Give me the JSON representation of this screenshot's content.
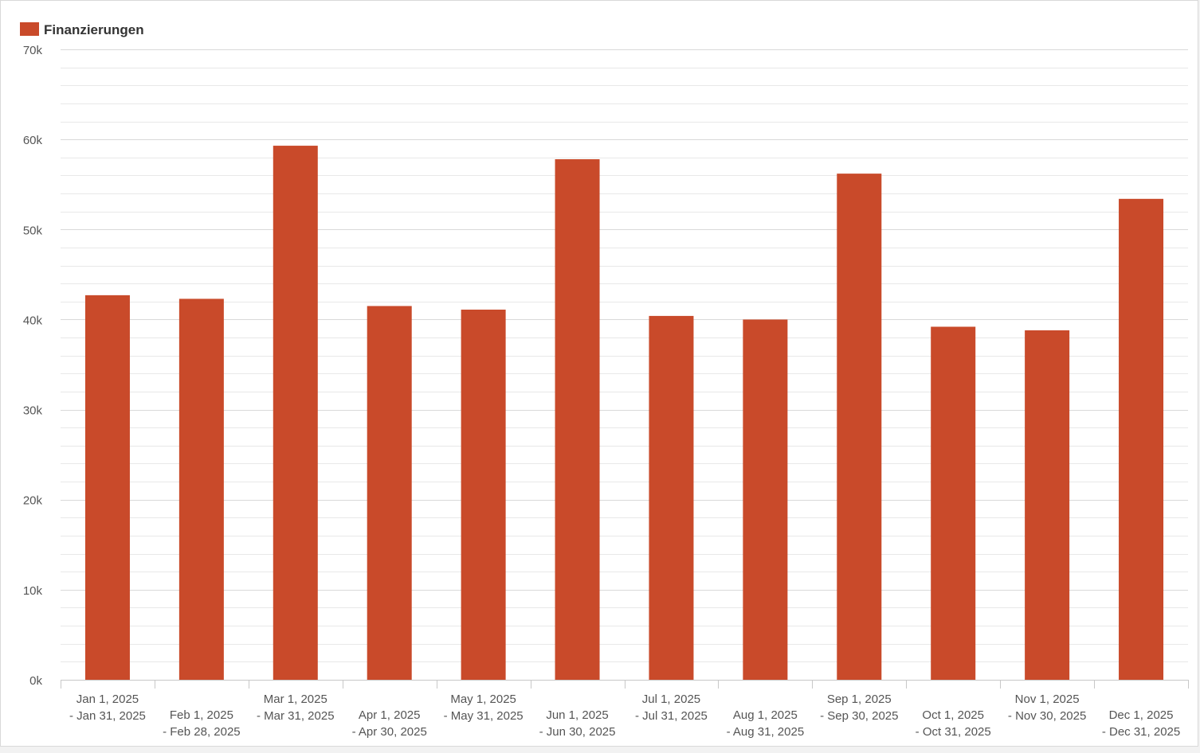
{
  "chart_data": {
    "type": "bar",
    "series": [
      {
        "name": "Finanzierungen",
        "color": "#c94a2a",
        "values": [
          42700,
          42300,
          59300,
          41500,
          41100,
          57800,
          40400,
          40000,
          56200,
          39200,
          38800,
          53400
        ]
      }
    ],
    "categories": [
      [
        "Jan 1, 2025",
        "- Jan 31, 2025"
      ],
      [
        "Feb 1, 2025",
        "- Feb 28, 2025"
      ],
      [
        "Mar 1, 2025",
        "- Mar 31, 2025"
      ],
      [
        "Apr 1, 2025",
        "- Apr 30, 2025"
      ],
      [
        "May 1, 2025",
        "- May 31, 2025"
      ],
      [
        "Jun 1, 2025",
        "- Jun 30, 2025"
      ],
      [
        "Jul 1, 2025",
        "- Jul 31, 2025"
      ],
      [
        "Aug 1, 2025",
        "- Aug 31, 2025"
      ],
      [
        "Sep 1, 2025",
        "- Sep 30, 2025"
      ],
      [
        "Oct 1, 2025",
        "- Oct 31, 2025"
      ],
      [
        "Nov 1, 2025",
        "- Nov 30, 2025"
      ],
      [
        "Dec 1, 2025",
        "- Dec 31, 2025"
      ]
    ],
    "y_ticks": [
      0,
      10000,
      20000,
      30000,
      40000,
      50000,
      60000,
      70000
    ],
    "y_tick_labels": [
      "0k",
      "10k",
      "20k",
      "30k",
      "40k",
      "50k",
      "60k",
      "70k"
    ],
    "ylim": [
      0,
      70000
    ],
    "grid": true,
    "legend_position": "top-left",
    "title": "",
    "xlabel": "",
    "ylabel": ""
  }
}
